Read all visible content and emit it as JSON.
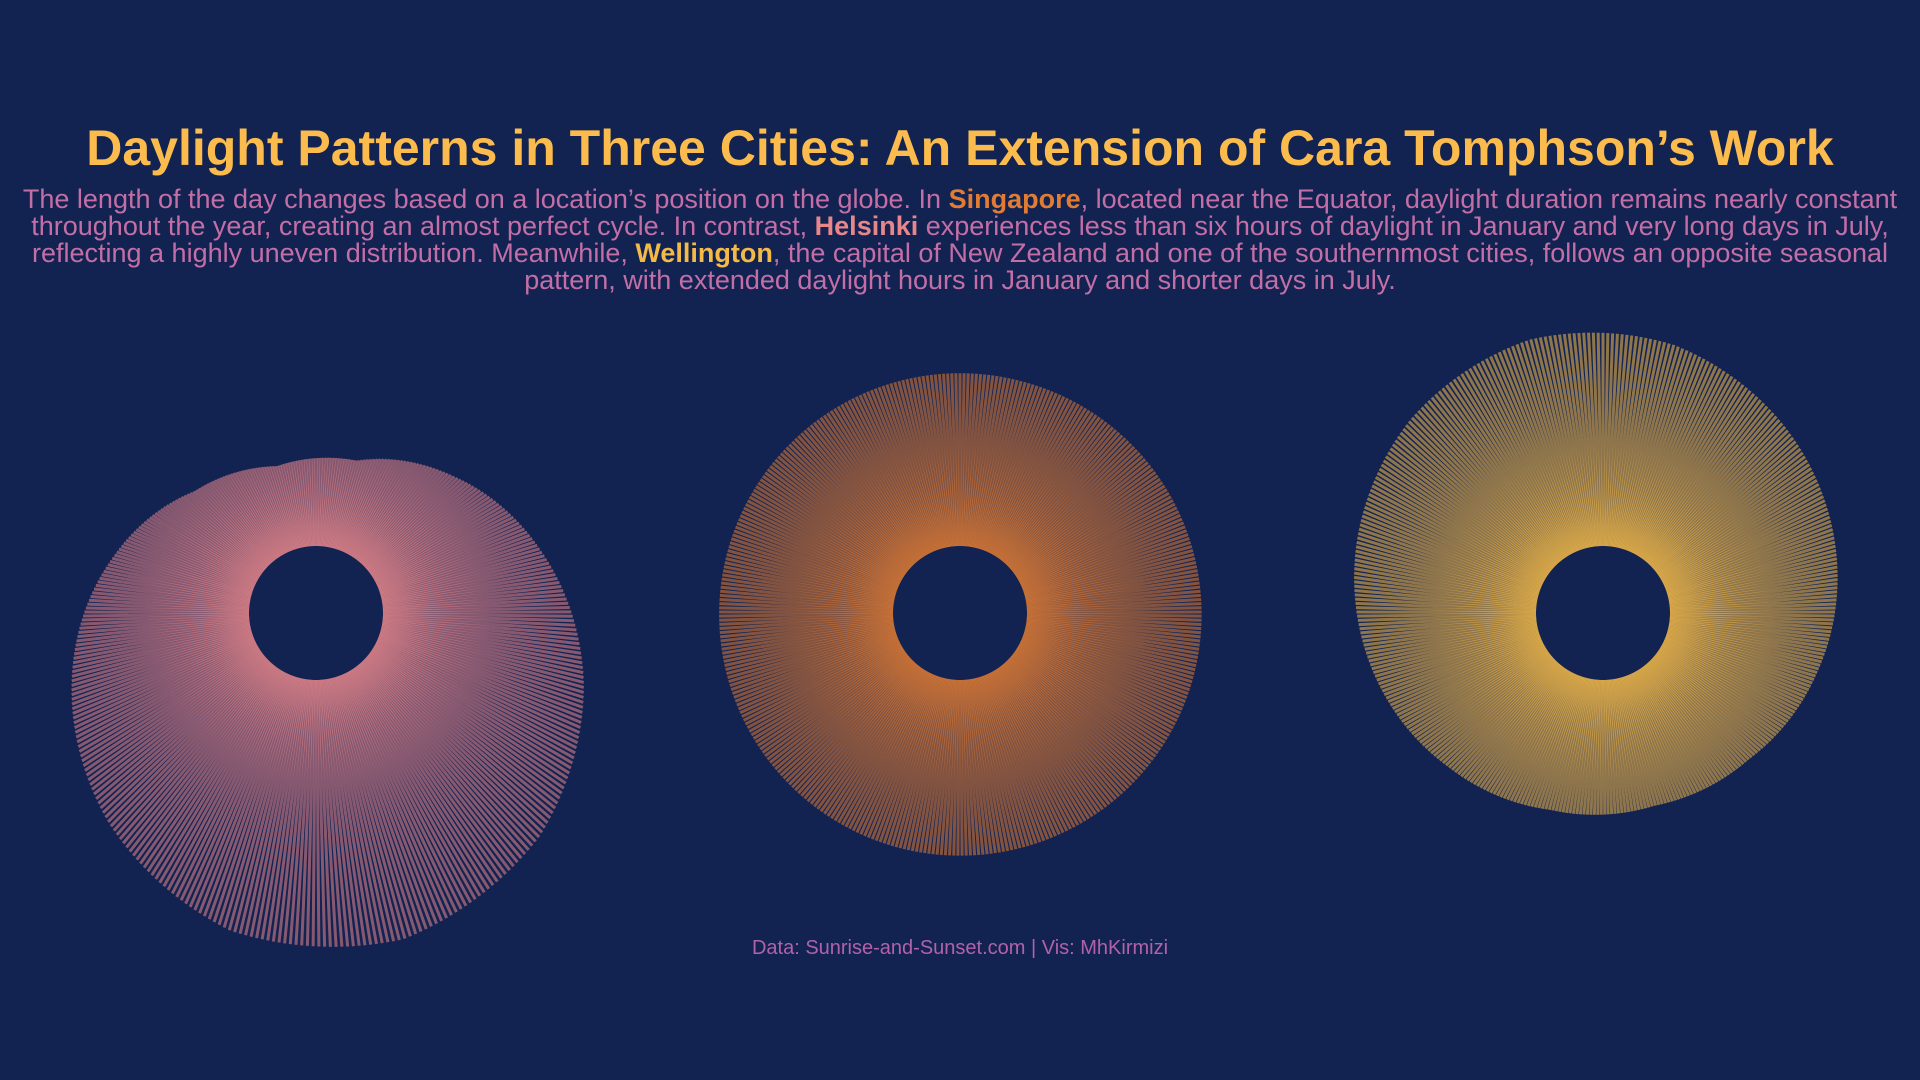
{
  "colors": {
    "background": "#122352",
    "title": "#FBBC4D",
    "subtitle": "#C36FA6",
    "singapore": "#E07C33",
    "helsinki": "#E8878A",
    "wellington": "#F4BA47",
    "caption": "#B162A8"
  },
  "header": {
    "title": "Daylight Patterns in Three Cities: An Extension of Cara Tomphson’s Work",
    "subtitle_parts": {
      "p1": "The length of the day changes based on a location’s position on the globe. In ",
      "city1": "Singapore",
      "p2": ", located near the Equator, daylight duration remains nearly constant throughout the year, creating an almost perfect cycle. In contrast, ",
      "city2": "Helsinki",
      "p3": " experiences less than six hours of daylight in January and very long days in July, reflecting a highly uneven distribution. Meanwhile, ",
      "city3": "Wellington",
      "p4": ", the capital of New Zealand and one of the southernmost cities, follows an opposite seasonal pattern, with extended daylight hours in January and shorter days in July."
    }
  },
  "footer": {
    "caption": "Data: Sunrise-and-Sunset.com |  Vis: MhKirmizi"
  },
  "chart_data": {
    "type": "radial",
    "series": [
      {
        "name": "Helsinki",
        "color": "#E8878A",
        "months": [
          1,
          2,
          3,
          4,
          5,
          6,
          7,
          8,
          9,
          10,
          11,
          12
        ],
        "daylight_hours": [
          6.3,
          8.8,
          11.6,
          14.6,
          17.3,
          18.8,
          18.2,
          15.8,
          12.9,
          10.0,
          7.3,
          5.9
        ]
      },
      {
        "name": "Singapore",
        "color": "#E07C33",
        "months": [
          1,
          2,
          3,
          4,
          5,
          6,
          7,
          8,
          9,
          10,
          11,
          12
        ],
        "daylight_hours": [
          12.0,
          12.05,
          12.1,
          12.15,
          12.2,
          12.2,
          12.2,
          12.15,
          12.1,
          12.05,
          12.0,
          12.0
        ]
      },
      {
        "name": "Wellington",
        "color": "#F4BA47",
        "months": [
          1,
          2,
          3,
          4,
          5,
          6,
          7,
          8,
          9,
          10,
          11,
          12
        ],
        "daylight_hours": [
          14.6,
          13.4,
          12.1,
          10.8,
          9.7,
          9.2,
          9.5,
          10.5,
          11.8,
          13.1,
          14.3,
          15.0
        ]
      }
    ]
  }
}
